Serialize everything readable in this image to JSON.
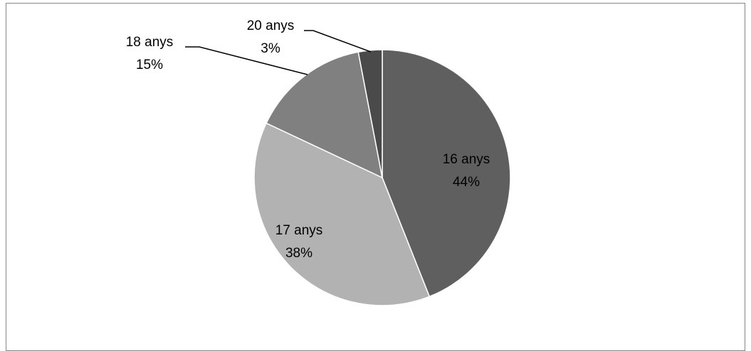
{
  "chart_data": {
    "type": "pie",
    "title": "",
    "categories": [
      "16 anys",
      "17 anys",
      "18 anys",
      "20 anys"
    ],
    "values": [
      44,
      38,
      15,
      3
    ],
    "labels": [
      {
        "category": "16 anys",
        "percent": "44%"
      },
      {
        "category": "17 anys",
        "percent": "38%"
      },
      {
        "category": "18 anys",
        "percent": "15%"
      },
      {
        "category": "20 anys",
        "percent": "3%"
      }
    ],
    "colors": [
      "#5f5f5f",
      "#b2b2b2",
      "#808080",
      "#4a4a4a"
    ],
    "legend": "none",
    "start": "12 o'clock",
    "direction": "clockwise"
  }
}
